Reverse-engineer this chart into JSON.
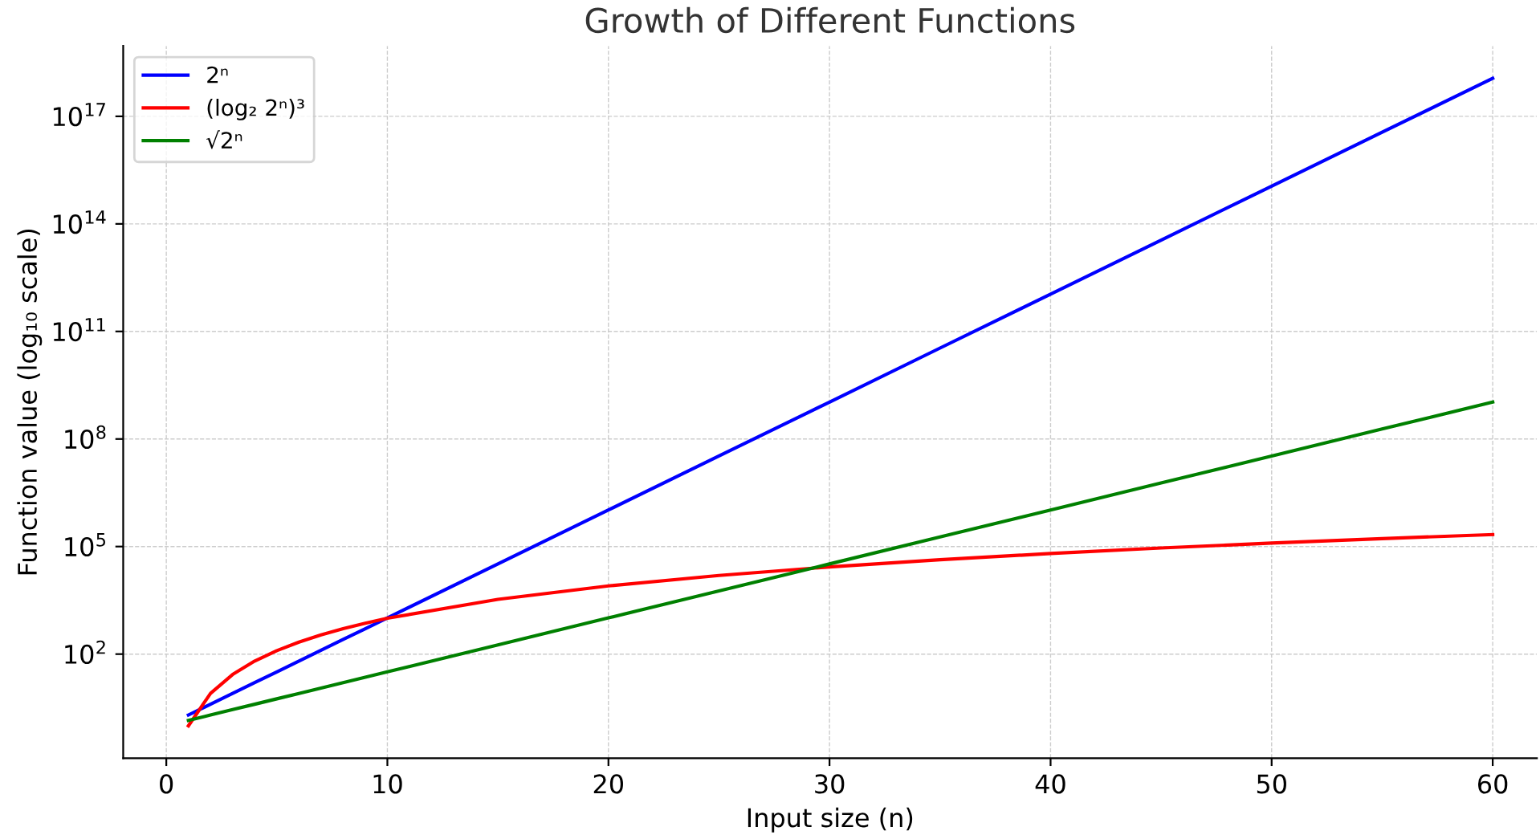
{
  "chart_data": {
    "type": "line",
    "title": "Growth of Different Functions",
    "xlabel": "Input size (n)",
    "ylabel": "Function value (log₁₀ scale)",
    "x": [
      1,
      2,
      3,
      4,
      5,
      6,
      7,
      8,
      9,
      10,
      15,
      20,
      25,
      30,
      35,
      40,
      45,
      50,
      55,
      60
    ],
    "series": [
      {
        "name": "2ⁿ",
        "color": "#0000ff",
        "values": [
          2,
          4,
          8,
          16,
          32,
          64,
          128,
          256,
          512,
          1024,
          32768,
          1048576,
          33600000.0,
          1070000000.0,
          34400000000.0,
          1100000000000.0,
          35200000000000.0,
          1130000000000000.0,
          3.6e+16,
          1.15e+18
        ]
      },
      {
        "name": "(log₂ 2ⁿ)³",
        "color": "#ff0000",
        "values": [
          1,
          8,
          27,
          64,
          125,
          216,
          343,
          512,
          729,
          1000,
          3375,
          8000,
          15625,
          27000,
          42875,
          64000,
          91125,
          125000,
          166375,
          216000
        ]
      },
      {
        "name": "√2ⁿ",
        "color": "#008000",
        "values": [
          1.41,
          2,
          2.83,
          4,
          5.66,
          8,
          11.3,
          16,
          22.6,
          32,
          181,
          1024,
          5793,
          32768,
          185364,
          1048576,
          5930000.0,
          33600000.0,
          190000000.0,
          1070000000.0
        ]
      }
    ],
    "log": "y",
    "xlim": [
      -1.95,
      62.0
    ],
    "xticks": [
      0,
      10,
      20,
      30,
      40,
      50,
      60
    ],
    "ylim": [
      0.125,
      9.2e+18
    ],
    "yticks": [
      {
        "value": 100,
        "label": "10$^{2}$"
      },
      {
        "value": 100000,
        "label": "10$^{5}$"
      },
      {
        "value": 100000000.0,
        "label": "10$^{8}$"
      },
      {
        "value": 100000000000.0,
        "label": "10$^{11}$"
      },
      {
        "value": 100000000000000.0,
        "label": "10$^{14}$"
      },
      {
        "value": 1e+17,
        "label": "10$^{17}$"
      }
    ],
    "grid": true,
    "legend": "top left",
    "line_style": "solid",
    "marker": "none"
  }
}
